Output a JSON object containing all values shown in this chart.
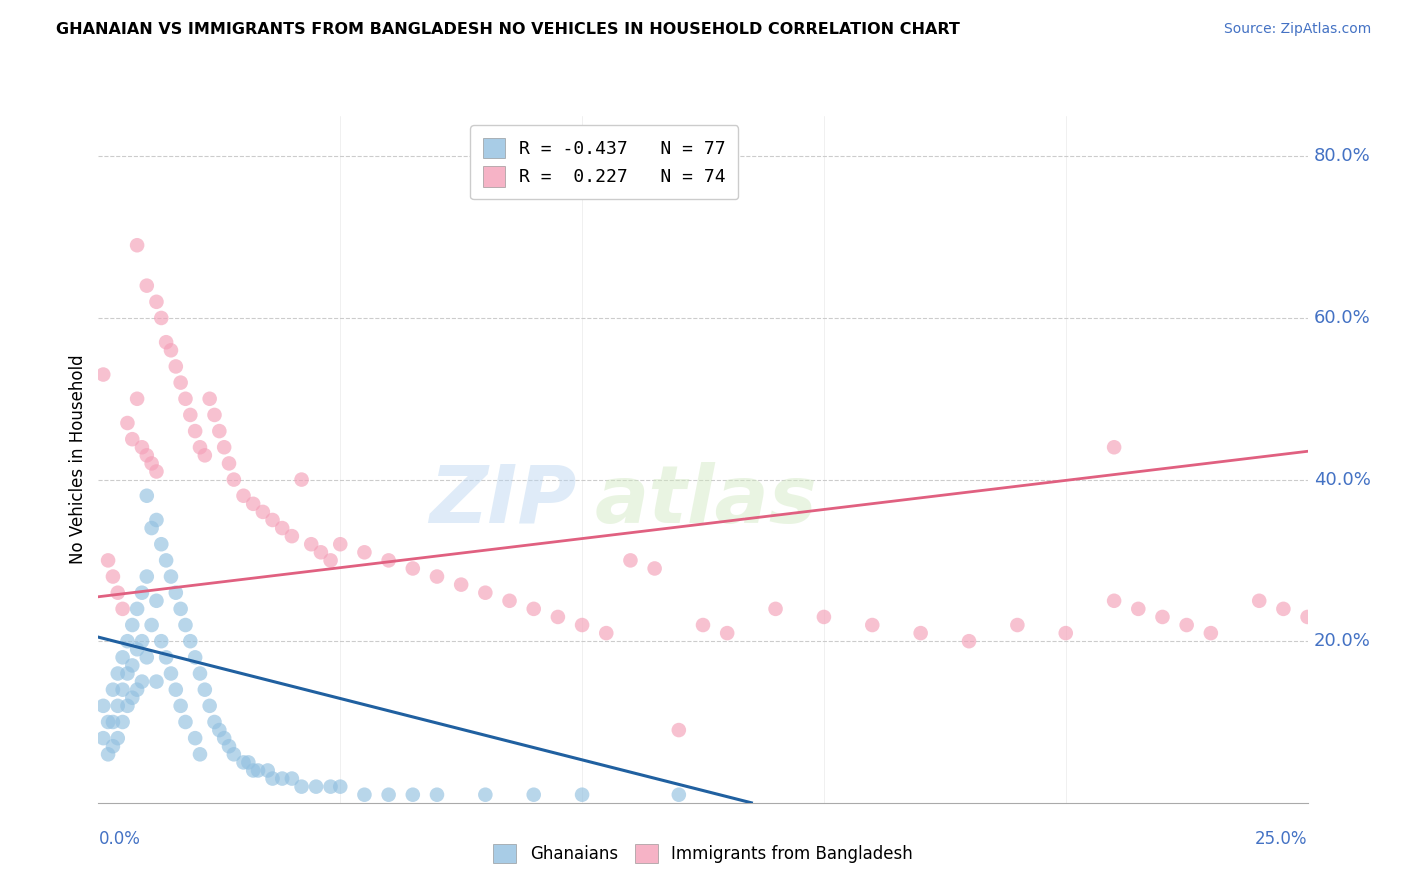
{
  "title": "GHANAIAN VS IMMIGRANTS FROM BANGLADESH NO VEHICLES IN HOUSEHOLD CORRELATION CHART",
  "source": "Source: ZipAtlas.com",
  "ylabel": "No Vehicles in Household",
  "xmin": 0.0,
  "xmax": 0.25,
  "ymin": 0.0,
  "ymax": 0.85,
  "yticks": [
    0.2,
    0.4,
    0.6,
    0.8
  ],
  "ytick_labels": [
    "20.0%",
    "40.0%",
    "60.0%",
    "80.0%"
  ],
  "ghanaian_color": "#92c0e0",
  "bangladesh_color": "#f4a0b8",
  "ghanaian_line_color": "#2060a0",
  "bangladesh_line_color": "#e06080",
  "legend_r_gh": "R = -0.437",
  "legend_n_gh": "N = 77",
  "legend_r_bd": "R =  0.227",
  "legend_n_bd": "N = 74",
  "watermark_zip": "ZIP",
  "watermark_atlas": "atlas",
  "gh_line_x0": 0.0,
  "gh_line_y0": 0.205,
  "gh_line_x1": 0.135,
  "gh_line_y1": 0.0,
  "bd_line_x0": 0.0,
  "bd_line_y0": 0.255,
  "bd_line_x1": 0.25,
  "bd_line_y1": 0.435,
  "gh_points_x": [
    0.001,
    0.001,
    0.002,
    0.002,
    0.003,
    0.003,
    0.003,
    0.004,
    0.004,
    0.004,
    0.005,
    0.005,
    0.005,
    0.006,
    0.006,
    0.006,
    0.007,
    0.007,
    0.007,
    0.008,
    0.008,
    0.008,
    0.009,
    0.009,
    0.009,
    0.01,
    0.01,
    0.01,
    0.011,
    0.011,
    0.012,
    0.012,
    0.012,
    0.013,
    0.013,
    0.014,
    0.014,
    0.015,
    0.015,
    0.016,
    0.016,
    0.017,
    0.017,
    0.018,
    0.018,
    0.019,
    0.02,
    0.02,
    0.021,
    0.021,
    0.022,
    0.023,
    0.024,
    0.025,
    0.026,
    0.027,
    0.028,
    0.03,
    0.031,
    0.032,
    0.033,
    0.035,
    0.036,
    0.038,
    0.04,
    0.042,
    0.045,
    0.048,
    0.05,
    0.055,
    0.06,
    0.065,
    0.07,
    0.08,
    0.09,
    0.1,
    0.12
  ],
  "gh_points_y": [
    0.12,
    0.08,
    0.1,
    0.06,
    0.14,
    0.1,
    0.07,
    0.16,
    0.12,
    0.08,
    0.18,
    0.14,
    0.1,
    0.2,
    0.16,
    0.12,
    0.22,
    0.17,
    0.13,
    0.24,
    0.19,
    0.14,
    0.26,
    0.2,
    0.15,
    0.38,
    0.28,
    0.18,
    0.34,
    0.22,
    0.35,
    0.25,
    0.15,
    0.32,
    0.2,
    0.3,
    0.18,
    0.28,
    0.16,
    0.26,
    0.14,
    0.24,
    0.12,
    0.22,
    0.1,
    0.2,
    0.18,
    0.08,
    0.16,
    0.06,
    0.14,
    0.12,
    0.1,
    0.09,
    0.08,
    0.07,
    0.06,
    0.05,
    0.05,
    0.04,
    0.04,
    0.04,
    0.03,
    0.03,
    0.03,
    0.02,
    0.02,
    0.02,
    0.02,
    0.01,
    0.01,
    0.01,
    0.01,
    0.01,
    0.01,
    0.01,
    0.01
  ],
  "bd_points_x": [
    0.001,
    0.002,
    0.003,
    0.004,
    0.005,
    0.006,
    0.007,
    0.008,
    0.009,
    0.01,
    0.011,
    0.012,
    0.013,
    0.014,
    0.015,
    0.016,
    0.017,
    0.018,
    0.019,
    0.02,
    0.021,
    0.022,
    0.023,
    0.024,
    0.025,
    0.026,
    0.027,
    0.028,
    0.03,
    0.032,
    0.034,
    0.036,
    0.038,
    0.04,
    0.042,
    0.044,
    0.046,
    0.048,
    0.05,
    0.055,
    0.06,
    0.065,
    0.07,
    0.075,
    0.08,
    0.085,
    0.09,
    0.095,
    0.1,
    0.105,
    0.11,
    0.115,
    0.12,
    0.125,
    0.13,
    0.14,
    0.15,
    0.16,
    0.17,
    0.18,
    0.19,
    0.2,
    0.21,
    0.215,
    0.22,
    0.225,
    0.23,
    0.24,
    0.245,
    0.25,
    0.008,
    0.01,
    0.012,
    0.21
  ],
  "bd_points_y": [
    0.53,
    0.3,
    0.28,
    0.26,
    0.24,
    0.47,
    0.45,
    0.5,
    0.44,
    0.43,
    0.42,
    0.41,
    0.6,
    0.57,
    0.56,
    0.54,
    0.52,
    0.5,
    0.48,
    0.46,
    0.44,
    0.43,
    0.5,
    0.48,
    0.46,
    0.44,
    0.42,
    0.4,
    0.38,
    0.37,
    0.36,
    0.35,
    0.34,
    0.33,
    0.4,
    0.32,
    0.31,
    0.3,
    0.32,
    0.31,
    0.3,
    0.29,
    0.28,
    0.27,
    0.26,
    0.25,
    0.24,
    0.23,
    0.22,
    0.21,
    0.3,
    0.29,
    0.09,
    0.22,
    0.21,
    0.24,
    0.23,
    0.22,
    0.21,
    0.2,
    0.22,
    0.21,
    0.25,
    0.24,
    0.23,
    0.22,
    0.21,
    0.25,
    0.24,
    0.23,
    0.69,
    0.64,
    0.62,
    0.44
  ]
}
